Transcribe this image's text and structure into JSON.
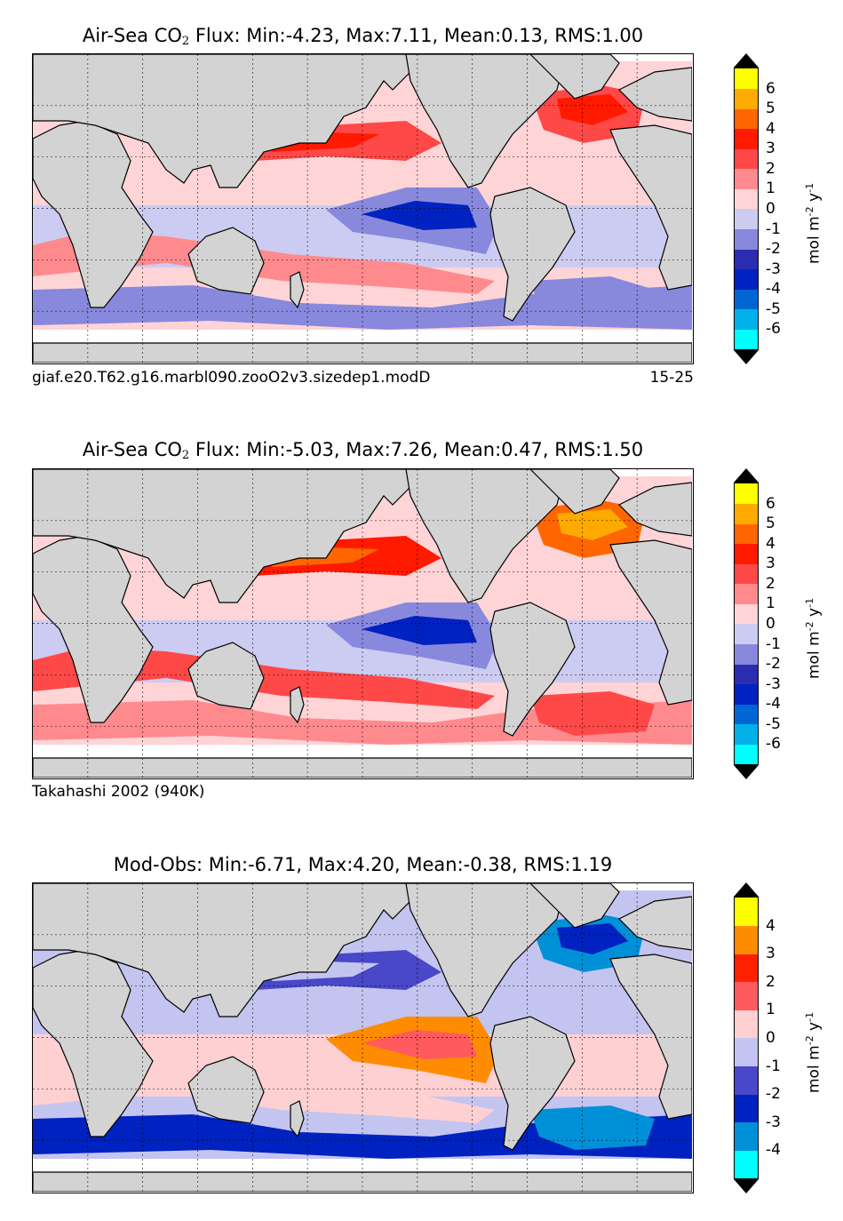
{
  "chart_data": [
    {
      "type": "heatmap",
      "title": "Air-Sea CO",
      "title_sub": "2",
      "title_rest": " Flux: Min:-4.23, Max:7.11, Mean:0.13, RMS:1.00",
      "caption_left": "giaf.e20.T62.g16.marbl090.zooO2v3.sizedep1.modD",
      "caption_right": "15-25",
      "colorbar": {
        "unit": "mol m",
        "unit_exp1": "-2",
        "unit_mid": " y",
        "unit_exp2": "-1",
        "levels": [
          -6,
          -5,
          -4,
          -3,
          -2,
          -1,
          0,
          1,
          2,
          3,
          4,
          5,
          6
        ],
        "tick_labels": [
          "-6",
          "-5",
          "-4",
          "-3",
          "-2",
          "-1",
          "0",
          "1",
          "2",
          "3",
          "4",
          "5",
          "6"
        ],
        "colors": [
          "#00ffff",
          "#00b0e8",
          "#0066d4",
          "#0022c0",
          "#2c2cb0",
          "#8888dd",
          "#ccccf2",
          "#ffd4d6",
          "#ff8a8e",
          "#ff4848",
          "#ff1a00",
          "#ff6600",
          "#ffaa00",
          "#ffff00"
        ],
        "over_color": "#000000",
        "under_color": "#000000"
      },
      "field": {
        "east_pacific_min": -3.5,
        "north_pacific_band": 2.5,
        "south_indian_band": 1.5,
        "north_atlantic_max": 3.5,
        "southern_ocean_band": -1.2
      }
    },
    {
      "type": "heatmap",
      "title": "Air-Sea CO",
      "title_sub": "2",
      "title_rest": " Flux: Min:-5.03, Max:7.26, Mean:0.47, RMS:1.50",
      "caption_left": "Takahashi 2002 (940K)",
      "caption_right": "",
      "colorbar": {
        "unit": "mol m",
        "unit_exp1": "-2",
        "unit_mid": " y",
        "unit_exp2": "-1",
        "levels": [
          -6,
          -5,
          -4,
          -3,
          -2,
          -1,
          0,
          1,
          2,
          3,
          4,
          5,
          6
        ],
        "tick_labels": [
          "-6",
          "-5",
          "-4",
          "-3",
          "-2",
          "-1",
          "0",
          "1",
          "2",
          "3",
          "4",
          "5",
          "6"
        ],
        "colors": [
          "#00ffff",
          "#00b0e8",
          "#0066d4",
          "#0022c0",
          "#2c2cb0",
          "#8888dd",
          "#ccccf2",
          "#ffd4d6",
          "#ff8a8e",
          "#ff4848",
          "#ff1a00",
          "#ff6600",
          "#ffaa00",
          "#ffff00"
        ],
        "over_color": "#000000",
        "under_color": "#000000"
      },
      "field": {
        "east_pacific_min": -3.5,
        "north_pacific_band": 3.5,
        "south_indian_band": 2.5,
        "north_atlantic_max": 5.5,
        "southern_ocean_band": 1.5
      }
    },
    {
      "type": "heatmap",
      "title": "Mod-Obs: Min:-6.71, Max:4.20, Mean:-0.38, RMS:1.19",
      "title_sub": "",
      "title_rest": "",
      "caption_left": "",
      "caption_right": "",
      "colorbar": {
        "unit": "mol m",
        "unit_exp1": "-2",
        "unit_mid": " y",
        "unit_exp2": "-1",
        "levels": [
          -4,
          -3,
          -2,
          -1,
          0,
          1,
          2,
          3,
          4
        ],
        "tick_labels": [
          "-4",
          "-3",
          "-2",
          "-1",
          "0",
          "1",
          "2",
          "3",
          "4"
        ],
        "colors": [
          "#00ffff",
          "#0090d8",
          "#0022c0",
          "#4848c8",
          "#c4c4f0",
          "#ffd0d2",
          "#ff5a5e",
          "#ff2000",
          "#ff8c00",
          "#ffff00"
        ],
        "over_color": "#000000",
        "under_color": "#000000"
      },
      "field": {
        "east_pacific_min": 1.5,
        "north_pacific_band": -1.5,
        "south_indian_band": 0.5,
        "north_atlantic_max": -2.5,
        "southern_ocean_band": -2.5
      }
    }
  ]
}
